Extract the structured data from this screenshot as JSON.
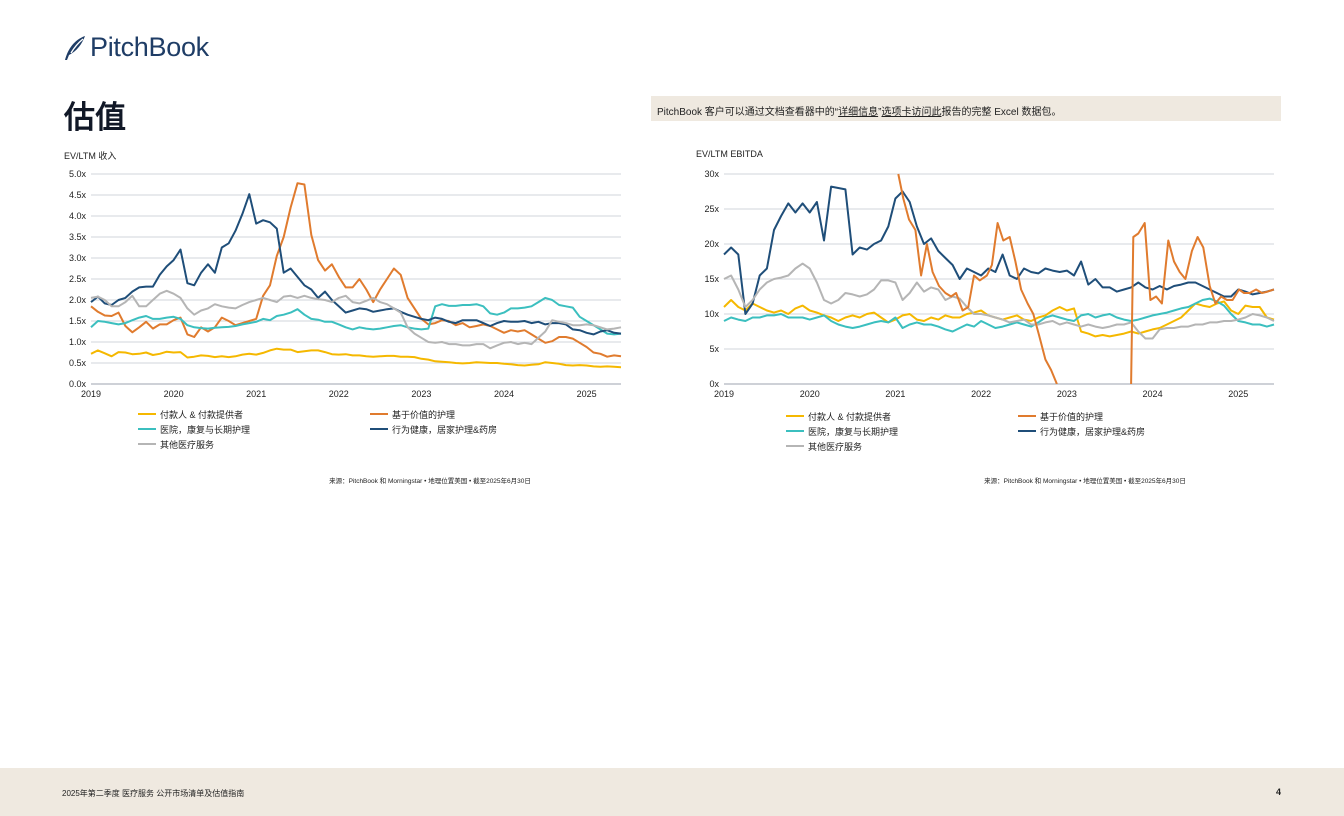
{
  "brand": {
    "name": "PitchBook",
    "color": "#1f3d66"
  },
  "page": {
    "title": "估值"
  },
  "notice": {
    "pre": "PitchBook 客户可以通过文档查看器中的“",
    "link1": "详细信息",
    "mid": "”",
    "link2": "选项卡访问此",
    "post": "报告的完整 Excel 数据包。"
  },
  "series_styles": [
    {
      "name": "付款人 & 付款提供者",
      "color": "#f5b800"
    },
    {
      "name": "基于价值的护理",
      "color": "#e07b2e"
    },
    {
      "name": "医院，康复与长期护理",
      "color": "#3bbfbf"
    },
    {
      "name": "行为健康，居家护理&药房",
      "color": "#1f4e79"
    },
    {
      "name": "其他医疗服务",
      "color": "#b5b5b5"
    }
  ],
  "chart_data": [
    {
      "type": "line",
      "title": "EV/LTM 收入",
      "x_start": "2019-01",
      "x_labels": [
        "2019",
        "2020",
        "2021",
        "2022",
        "2023",
        "2024",
        "2025"
      ],
      "ylim": [
        0,
        5
      ],
      "yticks": [
        "0.0x",
        "0.5x",
        "1.0x",
        "1.5x",
        "2.0x",
        "2.5x",
        "3.0x",
        "3.5x",
        "4.0x",
        "4.5x",
        "5.0x"
      ],
      "grid": true,
      "legend_position": "bottom",
      "series": [
        {
          "name": "付款人 & 付款提供者",
          "values": [
            0.72,
            0.8,
            0.73,
            0.66,
            0.76,
            0.75,
            0.71,
            0.72,
            0.75,
            0.69,
            0.72,
            0.77,
            0.75,
            0.76,
            0.63,
            0.65,
            0.68,
            0.67,
            0.64,
            0.66,
            0.64,
            0.66,
            0.7,
            0.72,
            0.7,
            0.74,
            0.8,
            0.84,
            0.82,
            0.82,
            0.76,
            0.78,
            0.8,
            0.8,
            0.76,
            0.71,
            0.7,
            0.71,
            0.68,
            0.68,
            0.66,
            0.65,
            0.66,
            0.67,
            0.67,
            0.65,
            0.65,
            0.64,
            0.6,
            0.58,
            0.54,
            0.53,
            0.52,
            0.5,
            0.49,
            0.5,
            0.52,
            0.51,
            0.5,
            0.5,
            0.48,
            0.47,
            0.45,
            0.44,
            0.46,
            0.47,
            0.52,
            0.5,
            0.48,
            0.45,
            0.44,
            0.45,
            0.44,
            0.42,
            0.41,
            0.42,
            0.41,
            0.4
          ]
        },
        {
          "name": "基于价值的护理",
          "values": [
            1.85,
            1.72,
            1.63,
            1.62,
            1.7,
            1.38,
            1.23,
            1.35,
            1.48,
            1.32,
            1.42,
            1.42,
            1.52,
            1.58,
            1.18,
            1.12,
            1.35,
            1.25,
            1.35,
            1.58,
            1.5,
            1.4,
            1.45,
            1.5,
            1.55,
            2.1,
            2.35,
            3.05,
            3.5,
            4.2,
            4.78,
            4.75,
            3.55,
            2.95,
            2.7,
            2.85,
            2.55,
            2.3,
            2.3,
            2.5,
            2.25,
            1.95,
            2.25,
            2.5,
            2.75,
            2.6,
            2.05,
            1.8,
            1.55,
            1.42,
            1.45,
            1.52,
            1.5,
            1.4,
            1.45,
            1.35,
            1.38,
            1.42,
            1.38,
            1.3,
            1.22,
            1.28,
            1.25,
            1.28,
            1.18,
            1.08,
            0.98,
            1.02,
            1.12,
            1.12,
            1.08,
            0.98,
            0.88,
            0.75,
            0.72,
            0.65,
            0.68,
            0.66
          ]
        },
        {
          "name": "医院，康复与长期护理",
          "values": [
            1.35,
            1.5,
            1.48,
            1.45,
            1.42,
            1.45,
            1.52,
            1.58,
            1.62,
            1.55,
            1.55,
            1.58,
            1.6,
            1.55,
            1.4,
            1.35,
            1.33,
            1.32,
            1.34,
            1.35,
            1.36,
            1.38,
            1.42,
            1.45,
            1.48,
            1.55,
            1.52,
            1.62,
            1.65,
            1.7,
            1.78,
            1.65,
            1.55,
            1.53,
            1.48,
            1.48,
            1.42,
            1.35,
            1.3,
            1.35,
            1.32,
            1.3,
            1.32,
            1.35,
            1.38,
            1.4,
            1.35,
            1.32,
            1.3,
            1.32,
            1.85,
            1.9,
            1.86,
            1.86,
            1.88,
            1.88,
            1.9,
            1.85,
            1.68,
            1.65,
            1.7,
            1.8,
            1.8,
            1.82,
            1.85,
            1.95,
            2.05,
            2.0,
            1.88,
            1.85,
            1.82,
            1.6,
            1.5,
            1.4,
            1.3,
            1.2,
            1.18,
            1.2
          ]
        },
        {
          "name": "行为健康，居家护理&药房",
          "values": [
            1.95,
            2.08,
            1.92,
            1.88,
            2.0,
            2.05,
            2.2,
            2.3,
            2.32,
            2.32,
            2.6,
            2.8,
            2.95,
            3.2,
            2.4,
            2.35,
            2.65,
            2.85,
            2.65,
            3.25,
            3.35,
            3.65,
            4.05,
            4.52,
            3.82,
            3.9,
            3.85,
            3.7,
            2.65,
            2.75,
            2.55,
            2.35,
            2.25,
            2.05,
            2.2,
            2.0,
            1.85,
            1.7,
            1.75,
            1.8,
            1.78,
            1.72,
            1.75,
            1.78,
            1.8,
            1.72,
            1.65,
            1.6,
            1.55,
            1.52,
            1.58,
            1.55,
            1.48,
            1.45,
            1.52,
            1.52,
            1.52,
            1.45,
            1.38,
            1.45,
            1.5,
            1.48,
            1.48,
            1.5,
            1.45,
            1.48,
            1.42,
            1.45,
            1.45,
            1.42,
            1.3,
            1.28,
            1.22,
            1.18,
            1.25,
            1.28,
            1.22,
            1.2
          ]
        },
        {
          "name": "其他医疗服务",
          "values": [
            2.05,
            2.08,
            2.0,
            1.85,
            1.85,
            1.95,
            2.1,
            1.85,
            1.85,
            2.0,
            2.15,
            2.22,
            2.15,
            2.05,
            1.8,
            1.65,
            1.75,
            1.8,
            1.9,
            1.85,
            1.82,
            1.8,
            1.88,
            1.95,
            2.0,
            2.05,
            2.0,
            1.95,
            2.08,
            2.1,
            2.05,
            2.1,
            2.05,
            2.02,
            2.0,
            1.95,
            2.05,
            2.1,
            1.95,
            1.92,
            1.98,
            2.05,
            1.95,
            1.9,
            1.8,
            1.7,
            1.35,
            1.2,
            1.1,
            1.0,
            0.98,
            1.0,
            0.95,
            0.95,
            0.92,
            0.92,
            0.95,
            0.95,
            0.85,
            0.92,
            0.98,
            1.0,
            0.95,
            0.98,
            0.95,
            1.1,
            1.25,
            1.52,
            1.48,
            1.45,
            1.4,
            1.4,
            1.42,
            1.4,
            1.35,
            1.3,
            1.32,
            1.35
          ]
        }
      ],
      "source": "来源：PitchBook 和 Morningstar • 地理位置美国 • 截至2025年6月30日"
    },
    {
      "type": "line",
      "title": "EV/LTM EBITDA",
      "x_start": "2019-01",
      "x_labels": [
        "2019",
        "2020",
        "2021",
        "2022",
        "2023",
        "2024",
        "2025"
      ],
      "ylim": [
        0,
        30
      ],
      "yticks": [
        "0x",
        "5x",
        "10x",
        "15x",
        "20x",
        "25x",
        "30x"
      ],
      "grid": true,
      "legend_position": "bottom",
      "series": [
        {
          "name": "付款人 & 付款提供者",
          "values": [
            11.0,
            12.0,
            11.0,
            10.5,
            11.5,
            11.0,
            10.5,
            10.2,
            10.5,
            10.0,
            10.8,
            11.2,
            10.5,
            10.2,
            9.8,
            9.5,
            9.0,
            9.5,
            9.8,
            9.5,
            10.0,
            10.2,
            9.5,
            8.8,
            9.2,
            9.8,
            10.0,
            9.2,
            9.0,
            9.5,
            9.2,
            9.8,
            9.5,
            9.5,
            10.0,
            10.2,
            10.5,
            9.8,
            9.5,
            9.2,
            9.5,
            9.8,
            9.2,
            9.0,
            9.5,
            9.8,
            10.5,
            11.0,
            10.5,
            10.8,
            7.5,
            7.2,
            6.8,
            7.0,
            6.8,
            7.0,
            7.2,
            7.5,
            7.2,
            7.5,
            7.8,
            8.0,
            8.5,
            9.0,
            9.5,
            10.5,
            11.5,
            11.2,
            11.0,
            11.5,
            11.8,
            10.5,
            10.0,
            11.2,
            11.0,
            11.0,
            9.5,
            9.2
          ]
        },
        {
          "name": "基于价值的护理",
          "values": [
            null,
            null,
            null,
            null,
            null,
            null,
            null,
            null,
            null,
            null,
            null,
            null,
            null,
            null,
            null,
            null,
            null,
            null,
            null,
            null,
            null,
            null,
            null,
            null,
            null,
            null,
            null,
            null,
            null,
            null,
            null,
            null,
            null,
            null,
            null,
            null,
            null,
            null,
            null,
            null,
            null,
            null,
            null,
            null,
            null,
            null,
            null,
            null,
            null,
            null,
            null,
            null,
            null,
            null,
            null,
            null,
            null,
            null,
            null,
            null,
            null,
            null,
            null,
            null,
            null,
            null,
            null,
            null,
            null,
            null,
            null,
            null,
            null,
            null,
            null,
            null,
            null,
            null
          ]
        },
        {
          "name": "医院，康复与长期护理",
          "values": [
            9.0,
            9.5,
            9.2,
            9.0,
            9.5,
            9.5,
            9.8,
            9.8,
            10.0,
            9.5,
            9.5,
            9.5,
            9.2,
            9.5,
            9.8,
            9.0,
            8.5,
            8.2,
            8.0,
            8.2,
            8.5,
            8.8,
            9.0,
            8.8,
            9.5,
            8.0,
            8.5,
            8.8,
            8.5,
            8.5,
            8.2,
            7.8,
            7.5,
            8.0,
            8.5,
            8.2,
            9.0,
            8.5,
            8.0,
            8.2,
            8.5,
            8.8,
            8.5,
            8.2,
            8.8,
            9.5,
            9.8,
            9.5,
            9.2,
            9.0,
            9.8,
            10.0,
            9.5,
            9.8,
            10.0,
            9.5,
            9.2,
            9.0,
            9.2,
            9.5,
            9.8,
            10.0,
            10.2,
            10.5,
            10.8,
            11.0,
            11.5,
            12.0,
            12.2,
            11.8,
            11.2,
            10.0,
            9.0,
            8.8,
            8.5,
            8.5,
            8.2,
            8.5
          ]
        },
        {
          "name": "行为健康，居家护理&药房",
          "values": [
            18.5,
            19.5,
            18.5,
            10.0,
            11.5,
            15.5,
            16.5,
            22.0,
            24.0,
            25.8,
            24.5,
            25.8,
            24.5,
            26.0,
            20.5,
            28.2,
            28.0,
            27.8,
            18.5,
            19.5,
            19.2,
            20.0,
            20.5,
            22.5,
            26.5,
            27.5,
            26.0,
            22.5,
            20.0,
            20.8,
            19.0,
            18.0,
            17.0,
            15.0,
            16.5,
            16.0,
            15.5,
            16.5,
            16.0,
            18.5,
            15.5,
            15.0,
            16.5,
            16.0,
            15.8,
            16.5,
            16.2,
            16.0,
            16.2,
            15.5,
            17.5,
            14.2,
            15.0,
            13.8,
            13.8,
            13.2,
            13.5,
            13.8,
            14.5,
            13.8,
            13.5,
            14.0,
            13.5,
            14.0,
            14.2,
            14.5,
            14.5,
            14.0,
            13.5,
            13.0,
            12.5,
            12.5,
            13.5,
            13.2,
            12.8,
            13.0,
            13.2,
            13.5
          ]
        },
        {
          "name": "其他医疗服务",
          "values": [
            15.0,
            15.5,
            13.5,
            11.0,
            12.0,
            13.5,
            14.5,
            15.0,
            15.2,
            15.5,
            16.5,
            17.2,
            16.5,
            14.5,
            12.0,
            11.5,
            12.0,
            13.0,
            12.8,
            12.5,
            12.8,
            13.5,
            14.8,
            14.8,
            14.5,
            12.0,
            13.0,
            14.5,
            13.2,
            13.8,
            13.5,
            12.0,
            12.5,
            12.2,
            11.0,
            10.0,
            10.0,
            9.8,
            9.5,
            9.2,
            8.8,
            9.0,
            9.2,
            8.5,
            8.5,
            8.8,
            9.0,
            8.5,
            8.8,
            8.5,
            8.2,
            8.5,
            8.2,
            8.0,
            8.2,
            8.5,
            8.5,
            8.8,
            7.5,
            6.5,
            6.5,
            7.8,
            8.0,
            8.0,
            8.2,
            8.2,
            8.5,
            8.5,
            8.8,
            8.8,
            9.0,
            9.0,
            9.2,
            9.5,
            10.0,
            9.8,
            9.5,
            9.0
          ]
        }
      ],
      "segments": [
        {
          "series": "基于价值的护理",
          "x": [
            24.4,
            25.1,
            25.9,
            26.8,
            27.6,
            28.4,
            29.2,
            30.1,
            31.0,
            31.8,
            32.5,
            33.4,
            34.2,
            35.0,
            35.8,
            36.8,
            37.5,
            38.3,
            39.1,
            40.0,
            40.8,
            41.6,
            42.5,
            43.3,
            44.1,
            45.0,
            45.8,
            46.6,
            47.4,
            48.1,
            48.5
          ],
          "y": [
            30.0,
            26.5,
            23.5,
            22.0,
            15.5,
            20.0,
            16.0,
            14.0,
            13.0,
            12.5,
            13.0,
            10.5,
            11.0,
            15.5,
            14.8,
            15.5,
            17.0,
            23.0,
            20.5,
            21.0,
            17.5,
            13.5,
            11.5,
            10.0,
            7.0,
            3.5,
            2.0,
            0.0,
            null,
            null,
            null
          ]
        },
        {
          "series": "基于价值的护理",
          "x": [
            57.0,
            57.3,
            58.0,
            58.9,
            59.7,
            60.5,
            61.3,
            62.2,
            63.0,
            63.8,
            64.6,
            65.5,
            66.3,
            67.1,
            68.0,
            68.8,
            69.6,
            70.4,
            71.2,
            72.1,
            72.8,
            73.6,
            74.5,
            75.3,
            76.1,
            77.0
          ],
          "y": [
            0.0,
            21.0,
            21.5,
            23.0,
            12.0,
            12.5,
            11.5,
            20.5,
            17.5,
            16.0,
            15.0,
            19.0,
            21.0,
            19.5,
            14.0,
            11.5,
            12.5,
            12.0,
            12.0,
            13.5,
            13.0,
            13.0,
            13.5,
            13.0,
            13.2,
            13.5
          ]
        }
      ],
      "source": "来源：PitchBook 和 Morningstar • 地理位置美国 • 截至2025年6月30日"
    }
  ],
  "footer": {
    "text": "2025年第二季度 医疗服务 公开市场清单及估值指南",
    "page_number": "4"
  }
}
